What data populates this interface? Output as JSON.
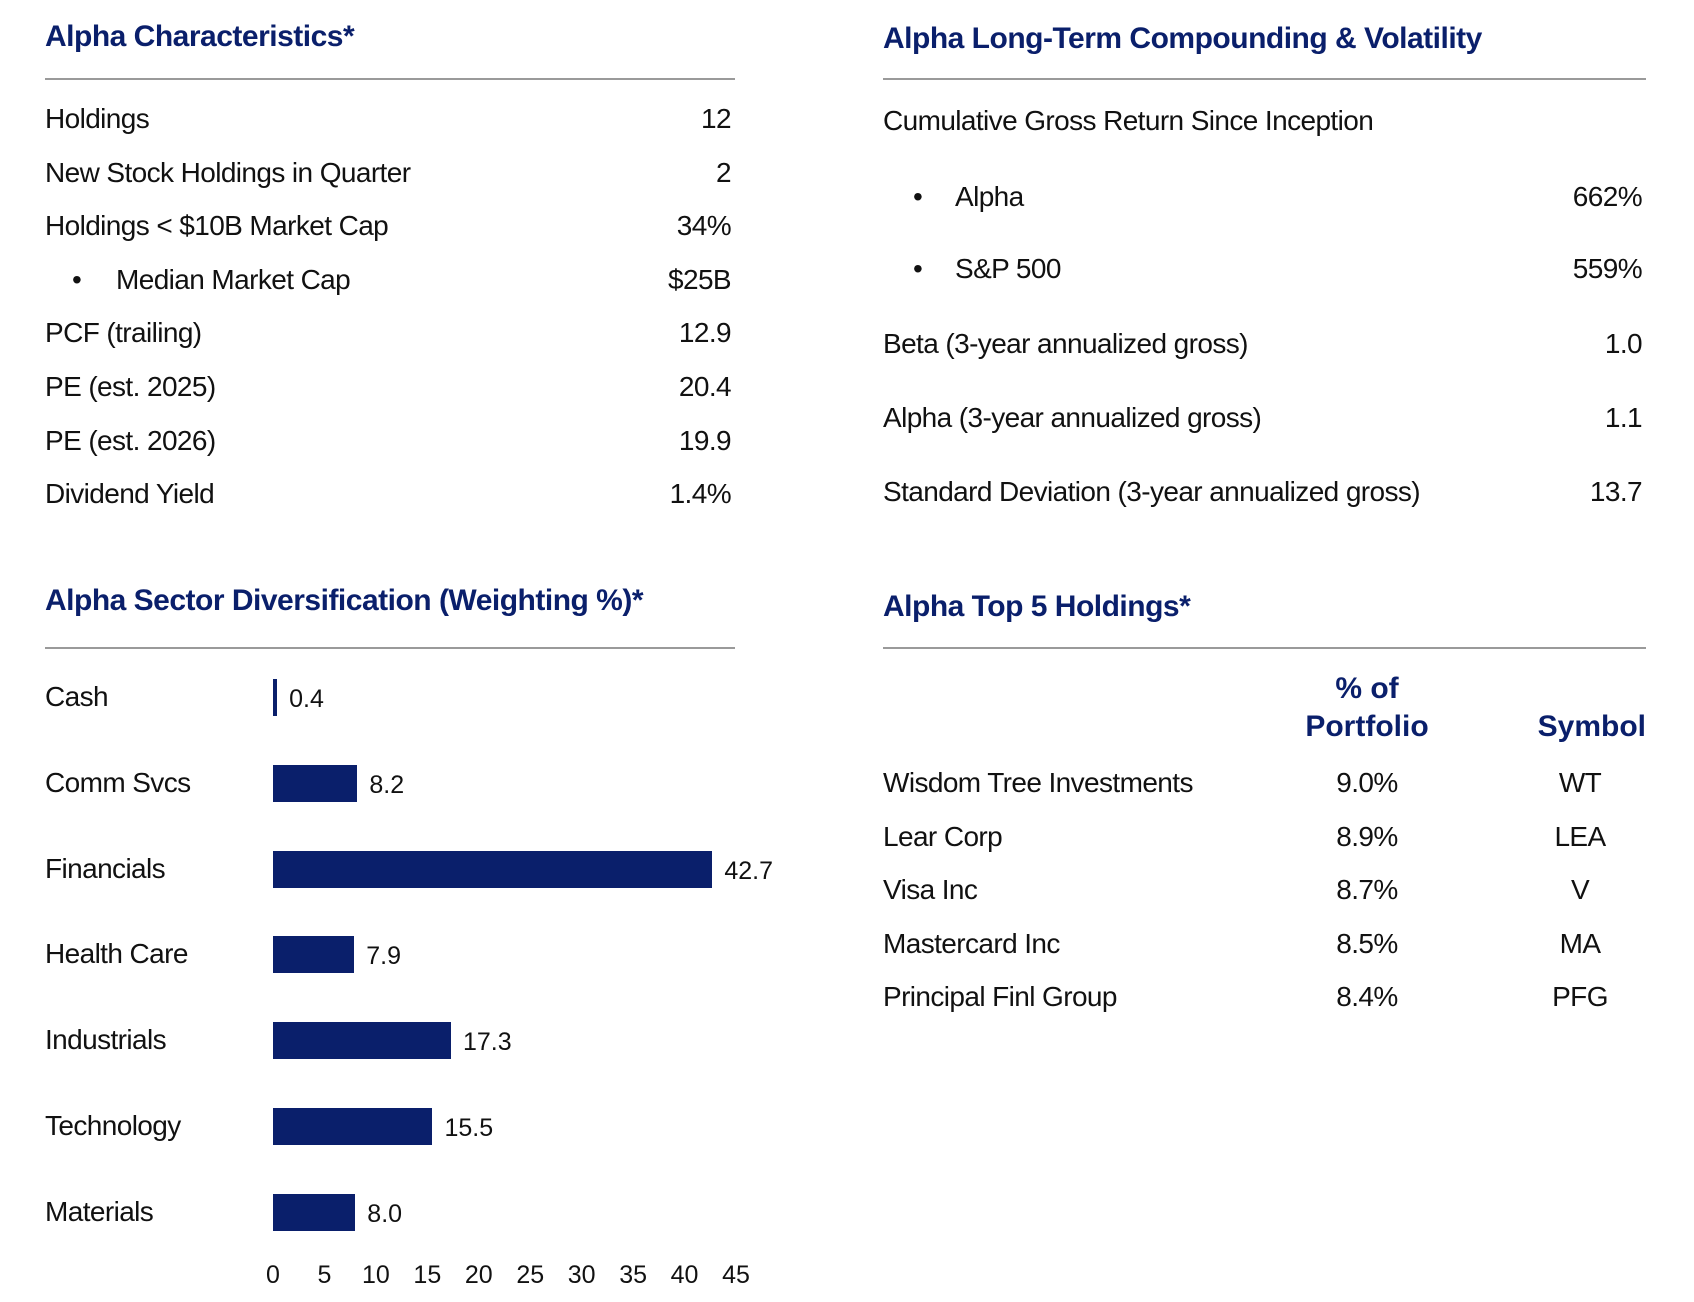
{
  "characteristics": {
    "title": "Alpha Characteristics*",
    "rows": [
      {
        "label": "Holdings",
        "value": "12",
        "bullet": false
      },
      {
        "label": "New Stock Holdings in Quarter",
        "value": "2",
        "bullet": false
      },
      {
        "label": "Holdings < $10B Market Cap",
        "value": "34%",
        "bullet": false
      },
      {
        "label": "Median Market Cap",
        "value": "$25B",
        "bullet": true
      },
      {
        "label": "PCF (trailing)",
        "value": "12.9",
        "bullet": false
      },
      {
        "label": "PE (est. 2025)",
        "value": "20.4",
        "bullet": false
      },
      {
        "label": "PE (est. 2026)",
        "value": "19.9",
        "bullet": false
      },
      {
        "label": "Dividend Yield",
        "value": "1.4%",
        "bullet": false
      }
    ]
  },
  "compounding": {
    "title": "Alpha Long-Term Compounding & Volatility",
    "cumulative_label": "Cumulative Gross Return Since Inception",
    "rows": [
      {
        "label": "Alpha",
        "value": "662%",
        "bullet": true
      },
      {
        "label": "S&P 500",
        "value": "559%",
        "bullet": true
      },
      {
        "label": "Beta (3-year annualized gross)",
        "value": "1.0",
        "bullet": false
      },
      {
        "label": "Alpha (3-year annualized gross)",
        "value": "1.1",
        "bullet": false
      },
      {
        "label": "Standard Deviation (3-year annualized gross)",
        "value": "13.7",
        "bullet": false
      }
    ]
  },
  "top_holdings": {
    "title": "Alpha Top 5 Holdings*",
    "col_pct_line1": "% of",
    "col_pct_line2": "Portfolio",
    "col_symbol": "Symbol",
    "rows": [
      {
        "name": "Wisdom Tree Investments",
        "pct": "9.0%",
        "symbol": "WT"
      },
      {
        "name": "Lear Corp",
        "pct": "8.9%",
        "symbol": "LEA"
      },
      {
        "name": "Visa Inc",
        "pct": "8.7%",
        "symbol": "V"
      },
      {
        "name": "Mastercard Inc",
        "pct": "8.5%",
        "symbol": "MA"
      },
      {
        "name": "Principal Finl Group",
        "pct": "8.4%",
        "symbol": "PFG"
      }
    ]
  },
  "colors": {
    "accent": "#0a1f6b",
    "rule": "#9a9a9a"
  },
  "chart_data": {
    "type": "bar",
    "orientation": "horizontal",
    "title": "Alpha Sector Diversification (Weighting %)*",
    "categories": [
      "Cash",
      "Comm Svcs",
      "Financials",
      "Health Care",
      "Industrials",
      "Technology",
      "Materials"
    ],
    "values": [
      0.4,
      8.2,
      42.7,
      7.9,
      17.3,
      15.5,
      8.0
    ],
    "value_labels": [
      "0.4",
      "8.2",
      "42.7",
      "7.9",
      "17.3",
      "15.5",
      "8.0"
    ],
    "xlim": [
      0,
      45
    ],
    "xticks": [
      "0",
      "5",
      "10",
      "15",
      "20",
      "25",
      "30",
      "35",
      "40",
      "45"
    ],
    "grid": false,
    "bar_color": "#0a1f6b"
  }
}
